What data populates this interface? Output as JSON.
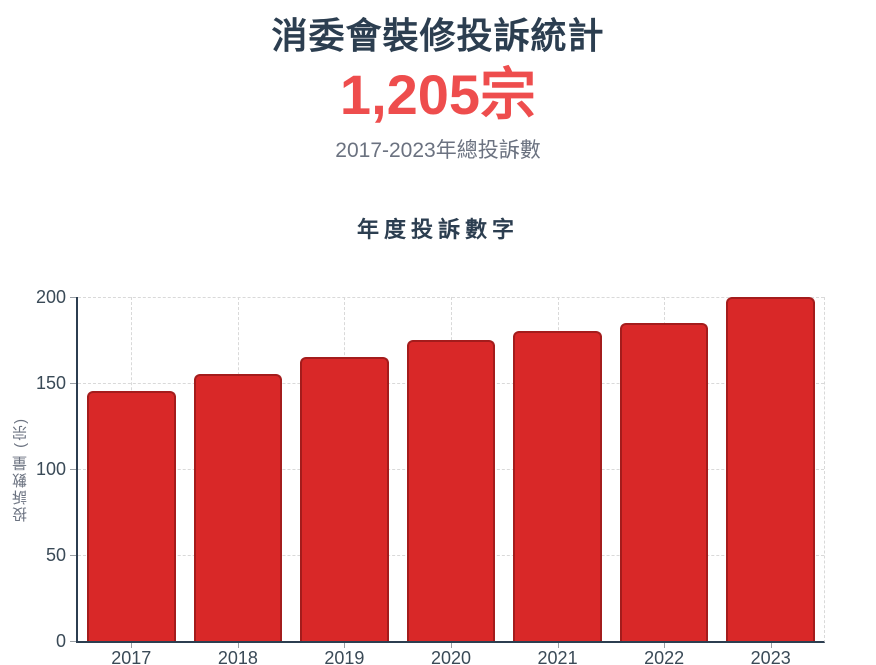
{
  "header": {
    "title": "消委會裝修投訴統計",
    "total_value": "1,205宗",
    "subtitle": "2017-2023年總投訴數"
  },
  "chart_data": {
    "type": "bar",
    "title": "年度投訴數字",
    "categories": [
      "2017",
      "2018",
      "2019",
      "2020",
      "2021",
      "2022",
      "2023"
    ],
    "values": [
      145,
      155,
      165,
      175,
      180,
      185,
      200
    ],
    "xlabel": "",
    "ylabel": "投訴數量 (宗)",
    "ylim": [
      0,
      200
    ],
    "yticks": [
      0,
      50,
      100,
      150,
      200
    ],
    "grid": true,
    "grid_style": "dashed",
    "legend": false,
    "bar_color": "#d92828",
    "bar_border_color": "#a41c1c"
  },
  "colors": {
    "heading": "#2c3e50",
    "total_number": "#ee4d4d",
    "subtitle": "#6b7280",
    "axis_line": "#2c3e50",
    "tick_label": "#3a4a57",
    "tick_mark": "#9aa0a6",
    "gridline": "#d9d9d9",
    "bar_fill": "#d92828",
    "bar_border": "#a41c1c",
    "background": "#ffffff"
  }
}
